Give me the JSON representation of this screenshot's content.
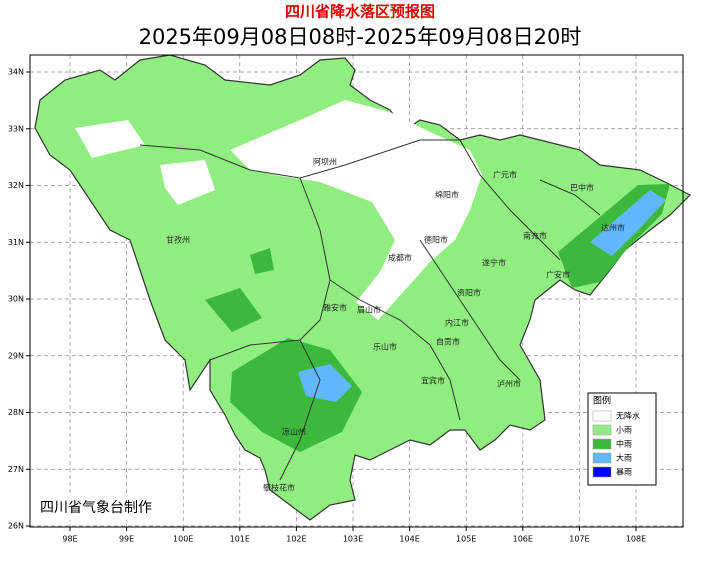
{
  "title": "四川省降水落区预报图",
  "subtitle": "2025年09月08日08时-2025年09月08日20时",
  "lon_labels": [
    "98E",
    "99E",
    "100E",
    "101E",
    "102E",
    "103E",
    "104E",
    "105E",
    "106E",
    "107E",
    "108E"
  ],
  "lat_labels": [
    "34N",
    "33N",
    "32N",
    "31N",
    "30N",
    "29N",
    "28N",
    "27N",
    "26N"
  ],
  "cities": [
    "阿坝州",
    "绵阳市",
    "广元市",
    "巴中市",
    "甘孜州",
    "德阳市",
    "达州市",
    "南充市",
    "成都市",
    "遂宁市",
    "广安市",
    "资阳市",
    "雅安市",
    "眉山市",
    "内江市",
    "乐山市",
    "自贡市",
    "宜宾市",
    "泸州市",
    "凉山州",
    "攀枝花市"
  ],
  "legend": {
    "title": "图例",
    "items": [
      {
        "name": "无降水",
        "color": "#ffffff"
      },
      {
        "name": "小雨",
        "color": "#90ee80"
      },
      {
        "name": "中雨",
        "color": "#3cb93c"
      },
      {
        "name": "大雨",
        "color": "#62b8ff"
      },
      {
        "name": "暴雨",
        "color": "#0000fe"
      }
    ]
  },
  "credit": "四川省气象台制作"
}
